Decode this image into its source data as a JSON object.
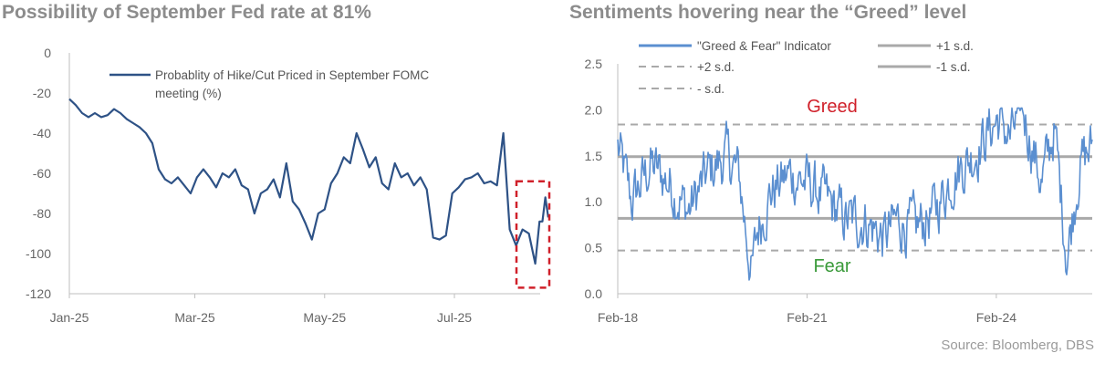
{
  "chart_data": [
    {
      "type": "line",
      "title": "Possibility of September Fed rate at 81%",
      "xlabel": "",
      "ylabel": "",
      "x_ticks": [
        "Jan-25",
        "Mar-25",
        "May-25",
        "Jul-25"
      ],
      "y_ticks": [
        0,
        -20,
        -40,
        -60,
        -80,
        -100,
        -120
      ],
      "ylim": [
        -120,
        0
      ],
      "xlim": [
        "2025-01-01",
        "2025-07-31"
      ],
      "legend_position": "top",
      "grid": false,
      "series": [
        {
          "name": "Probablity of Hike/Cut Priced in September FOMC meeting (%)",
          "color": "#2e5286",
          "x": [
            "2025-01-01",
            "2025-01-04",
            "2025-01-07",
            "2025-01-10",
            "2025-01-13",
            "2025-01-16",
            "2025-01-19",
            "2025-01-22",
            "2025-01-25",
            "2025-01-28",
            "2025-01-31",
            "2025-02-03",
            "2025-02-06",
            "2025-02-09",
            "2025-02-12",
            "2025-02-15",
            "2025-02-18",
            "2025-02-21",
            "2025-02-24",
            "2025-02-27",
            "2025-03-02",
            "2025-03-05",
            "2025-03-08",
            "2025-03-11",
            "2025-03-14",
            "2025-03-17",
            "2025-03-20",
            "2025-03-23",
            "2025-03-26",
            "2025-03-29",
            "2025-04-01",
            "2025-04-04",
            "2025-04-07",
            "2025-04-10",
            "2025-04-13",
            "2025-04-16",
            "2025-04-19",
            "2025-04-22",
            "2025-04-25",
            "2025-04-28",
            "2025-05-01",
            "2025-05-04",
            "2025-05-07",
            "2025-05-10",
            "2025-05-13",
            "2025-05-16",
            "2025-05-19",
            "2025-05-22",
            "2025-05-25",
            "2025-05-28",
            "2025-05-31",
            "2025-06-03",
            "2025-06-06",
            "2025-06-09",
            "2025-06-12",
            "2025-06-15",
            "2025-06-18",
            "2025-06-21",
            "2025-06-24",
            "2025-06-27",
            "2025-06-30",
            "2025-07-03",
            "2025-07-06",
            "2025-07-09",
            "2025-07-12",
            "2025-07-15",
            "2025-07-18",
            "2025-07-21",
            "2025-07-24",
            "2025-07-27",
            "2025-07-30",
            "2025-08-02",
            "2025-08-05",
            "2025-08-08",
            "2025-08-10"
          ],
          "values": [
            -23,
            -26,
            -30,
            -32,
            -30,
            -32,
            -31,
            -28,
            -30,
            -33,
            -35,
            -37,
            -40,
            -45,
            -58,
            -63,
            -65,
            -62,
            -66,
            -70,
            -62,
            -58,
            -62,
            -67,
            -60,
            -62,
            -58,
            -66,
            -68,
            -80,
            -70,
            -68,
            -63,
            -72,
            -55,
            -74,
            -78,
            -85,
            -93,
            -80,
            -78,
            -65,
            -60,
            -52,
            -55,
            -40,
            -48,
            -57,
            -52,
            -65,
            -68,
            -55,
            -62,
            -60,
            -66,
            -62,
            -68,
            -92,
            -93,
            -91,
            -70,
            -67,
            -63,
            -62,
            -60,
            -65,
            -64,
            -66,
            -40,
            -88,
            -96,
            -88,
            -90,
            -105,
            -84
          ],
          "extra_values": [
            -84,
            -72,
            -82
          ]
        }
      ],
      "highlight_box": {
        "x_range": [
          "2025-07-28",
          "2025-08-06"
        ],
        "y_range": [
          -117,
          -64
        ],
        "color": "#d0202a"
      }
    },
    {
      "type": "line",
      "title": "Sentiments hovering near the “Greed” level",
      "xlabel": "",
      "ylabel": "",
      "x_ticks": [
        "Feb-18",
        "Feb-21",
        "Feb-24"
      ],
      "y_ticks": [
        "0.0",
        "0.5",
        "1.0",
        "1.5",
        "2.0",
        "2.5"
      ],
      "ylim": [
        0,
        2.5
      ],
      "xlim": [
        2018.08,
        2025.6
      ],
      "legend_position": "top",
      "grid": false,
      "series": [
        {
          "name": "\"Greed & Fear\" Indicator",
          "color": "#5b8fd0",
          "x": [
            2018.08,
            2018.3,
            2018.6,
            2018.9,
            2019.2,
            2019.5,
            2019.8,
            2020.0,
            2020.2,
            2020.3,
            2020.5,
            2020.8,
            2021.1,
            2021.4,
            2021.7,
            2022.0,
            2022.3,
            2022.5,
            2022.8,
            2023.1,
            2023.4,
            2023.7,
            2024.0,
            2024.1,
            2024.3,
            2024.5,
            2024.8,
            2025.0,
            2025.2,
            2025.4,
            2025.6
          ],
          "values": [
            1.6,
            1.0,
            1.4,
            1.2,
            0.9,
            1.3,
            1.5,
            1.3,
            0.2,
            0.7,
            1.1,
            1.3,
            1.2,
            1.0,
            0.8,
            0.8,
            0.6,
            0.8,
            0.7,
            0.9,
            1.3,
            1.5,
            1.8,
            1.9,
            1.7,
            2.0,
            1.2,
            1.8,
            0.4,
            1.4,
            1.6
          ]
        },
        {
          "name": "+1 s.d.",
          "color": "#a9a9a9",
          "values": [
            1.49
          ]
        },
        {
          "name": "+2 s.d.",
          "color": "#a9a9a9",
          "values": [
            1.84
          ]
        },
        {
          "name": "-1 s.d.",
          "color": "#a9a9a9",
          "values": [
            0.82
          ]
        },
        {
          "name": "- s.d.",
          "color": "#a9a9a9",
          "values": [
            0.47
          ]
        }
      ],
      "annotations": [
        {
          "text": "Greed",
          "color": "#d0202a"
        },
        {
          "text": "Fear",
          "color": "#3a9a3a"
        }
      ]
    }
  ],
  "source": "Source: Bloomberg, DBS"
}
